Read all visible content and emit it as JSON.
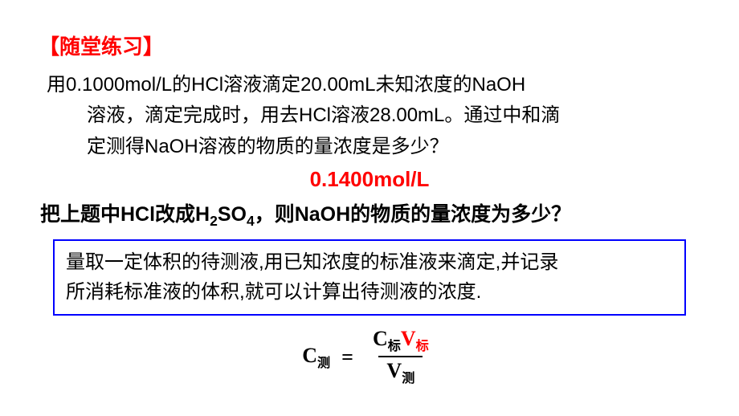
{
  "header": "【随堂练习】",
  "problem": {
    "line1": "用0.1000mol/L的HCl溶液滴定20.00mL未知浓度的NaOH",
    "line2": "溶液，滴定完成时，用去HCl溶液28.00mL。通过中和滴",
    "line3": "定测得NaOH溶液的物质的量浓度是多少？"
  },
  "answer1": "0.1400mol/L",
  "question2": {
    "prefix": "把上题中HCl改成H",
    "sub": "2",
    "mid": "SO",
    "sub2": "4",
    "suffix": "，则NaOH的物质的量浓度为多少？"
  },
  "boxed": {
    "line1": "量取一定体积的待测液,用已知浓度的标准液来滴定,并记录",
    "line2": "所消耗标准液的体积,就可以计算出待测液的浓度."
  },
  "formula": {
    "lhs_main": "C",
    "lhs_sub": "测",
    "eq": "=",
    "num_c": "C",
    "num_csub": "标",
    "num_v": "V",
    "num_vsub": "标",
    "den_v": "V",
    "den_vsub": "测"
  },
  "colors": {
    "red": "#ff0000",
    "blue_border": "#0000ff",
    "text": "#000000",
    "background": "#ffffff"
  }
}
